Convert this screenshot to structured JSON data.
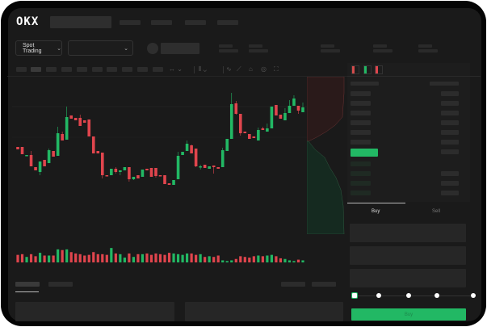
{
  "header": {
    "logo": "OKX"
  },
  "market_select": {
    "label": "Spot Trading",
    "chevron": "chevron-down-icon"
  },
  "pair_select": {
    "chevron": "chevron-down-icon"
  },
  "toolbar": {
    "icons": [
      "interval-dropdown-icon",
      "candle-type-icon",
      "indicator-icon",
      "ruler-icon",
      "camera-icon",
      "settings-icon",
      "fullscreen-icon"
    ]
  },
  "order_book": {
    "view_icons": [
      "both-sides-icon",
      "bids-only-icon",
      "asks-only-icon"
    ]
  },
  "trade_panel": {
    "tabs": [
      "Buy",
      "Sell"
    ],
    "active_tab": "Buy",
    "slider_percent": 0,
    "slider_stops": [
      0,
      25,
      50,
      75,
      100
    ]
  },
  "colors": {
    "up": "#22b864",
    "down": "#e0454d",
    "background": "#1a1a1a",
    "placeholder": "#2c2c2c"
  },
  "chart_data": {
    "type": "candlestick",
    "ohlc": [
      [
        58,
        58,
        55,
        55
      ],
      [
        58,
        58,
        49,
        49
      ],
      [
        47,
        48,
        47,
        48
      ],
      [
        48,
        53,
        34,
        34
      ],
      [
        33,
        33,
        29,
        29
      ],
      [
        27,
        40,
        23,
        40
      ],
      [
        42,
        42,
        34,
        34
      ],
      [
        38,
        56,
        38,
        54
      ],
      [
        53,
        53,
        46,
        46
      ],
      [
        47,
        83,
        47,
        75
      ],
      [
        74,
        77,
        66,
        66
      ],
      [
        67,
        108,
        67,
        95
      ],
      [
        97,
        97,
        93,
        93
      ],
      [
        94,
        94,
        91,
        91
      ],
      [
        94,
        98,
        84,
        84
      ],
      [
        91,
        91,
        88,
        88
      ],
      [
        92,
        92,
        71,
        71
      ],
      [
        71,
        71,
        50,
        50
      ],
      [
        53,
        53,
        50,
        50
      ],
      [
        51,
        51,
        19,
        23
      ],
      [
        23,
        23,
        22,
        22
      ],
      [
        23,
        31,
        23,
        31
      ],
      [
        31,
        33,
        25,
        27
      ],
      [
        27,
        29,
        23,
        29
      ],
      [
        29,
        33,
        29,
        33
      ],
      [
        33,
        33,
        15,
        18
      ],
      [
        18,
        21,
        17,
        21
      ],
      [
        23,
        23,
        19,
        19
      ],
      [
        21,
        30,
        21,
        30
      ],
      [
        31,
        31,
        29,
        29
      ],
      [
        32,
        32,
        21,
        21
      ],
      [
        32,
        32,
        20,
        22
      ],
      [
        23,
        23,
        22,
        22
      ],
      [
        23,
        23,
        12,
        12
      ],
      [
        13,
        13,
        11,
        11
      ],
      [
        11,
        17,
        11,
        17
      ],
      [
        18,
        52,
        18,
        47
      ],
      [
        48,
        52,
        48,
        52
      ],
      [
        53,
        66,
        53,
        62
      ],
      [
        60,
        61,
        50,
        50
      ],
      [
        56,
        56,
        33,
        34
      ],
      [
        33,
        36,
        30,
        34
      ],
      [
        36,
        36,
        32,
        32
      ],
      [
        31,
        34,
        31,
        34
      ],
      [
        35,
        35,
        25,
        33
      ],
      [
        33,
        33,
        31,
        31
      ],
      [
        33,
        57,
        33,
        54
      ],
      [
        53,
        68,
        53,
        68
      ],
      [
        68,
        125,
        68,
        111
      ],
      [
        112,
        115,
        98,
        99
      ],
      [
        99,
        99,
        72,
        75
      ],
      [
        77,
        77,
        75,
        75
      ],
      [
        74,
        74,
        68,
        68
      ],
      [
        71,
        71,
        69,
        69
      ],
      [
        66,
        82,
        66,
        79
      ],
      [
        81,
        83,
        79,
        79
      ],
      [
        77,
        87,
        77,
        81
      ],
      [
        81,
        108,
        81,
        108
      ],
      [
        110,
        110,
        97,
        97
      ],
      [
        98,
        98,
        93,
        93
      ],
      [
        91,
        106,
        91,
        100
      ],
      [
        100,
        116,
        100,
        109
      ],
      [
        109,
        122,
        109,
        118
      ],
      [
        109,
        109,
        99,
        103
      ],
      [
        101,
        113,
        101,
        107
      ]
    ],
    "volume": [
      11,
      12,
      8,
      12,
      9,
      14,
      10,
      10,
      10,
      19,
      18,
      19,
      15,
      13,
      12,
      10,
      11,
      15,
      12,
      12,
      11,
      21,
      13,
      12,
      7,
      13,
      8,
      12,
      12,
      13,
      11,
      13,
      12,
      11,
      14,
      13,
      12,
      11,
      13,
      13,
      11,
      12,
      8,
      9,
      8,
      10,
      3,
      2,
      3,
      5,
      9,
      8,
      7,
      9,
      10,
      9,
      10,
      11,
      9,
      6,
      5,
      3,
      2,
      4,
      3
    ],
    "price_range": [
      0,
      130
    ],
    "grid": true
  }
}
